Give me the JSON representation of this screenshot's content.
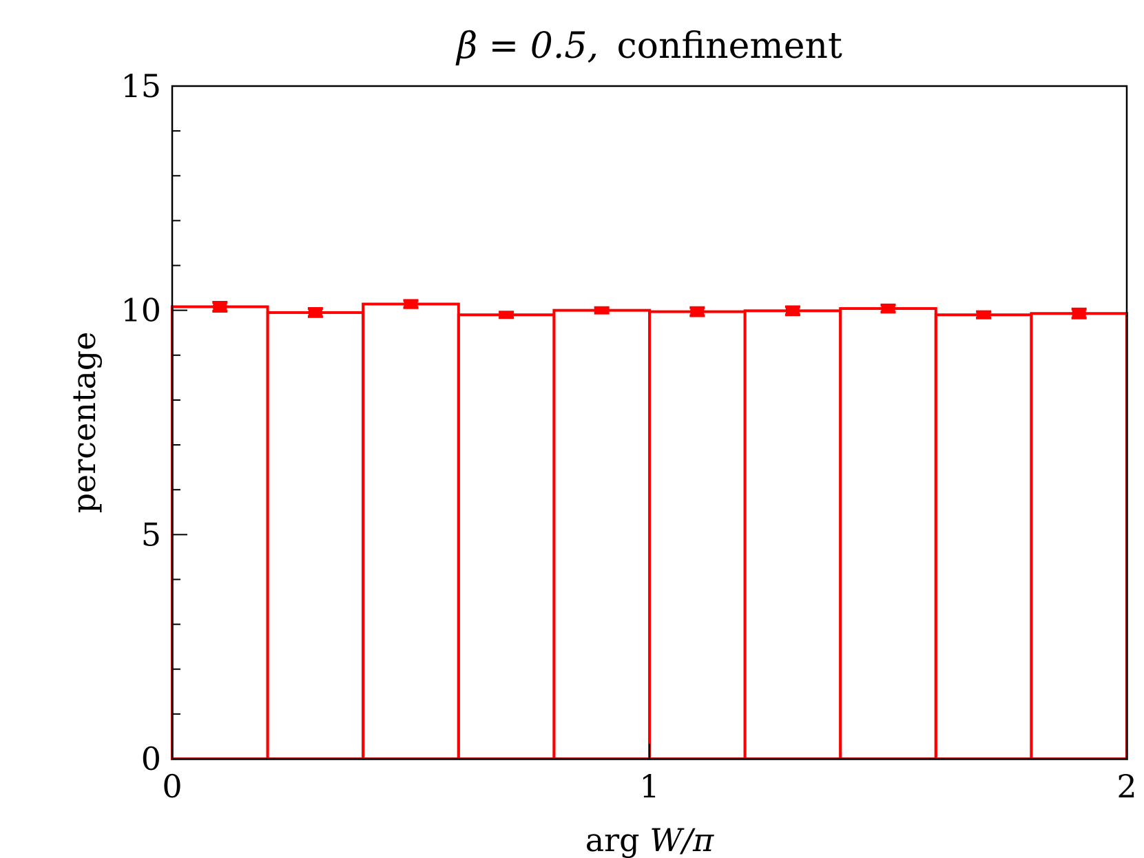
{
  "chart_data": {
    "type": "bar",
    "title_math": "β = 0.5,",
    "title_text": "confinement",
    "xlabel_prefix": "arg",
    "xlabel_math": "W/π",
    "ylabel": "percentage",
    "xlim": [
      0,
      2
    ],
    "ylim": [
      0,
      15
    ],
    "x_ticks": [
      0,
      1,
      2
    ],
    "x_tick_labels": [
      "0",
      "1",
      "2"
    ],
    "y_ticks": [
      0,
      5,
      10,
      15
    ],
    "y_tick_labels": [
      "0",
      "5",
      "10",
      "15"
    ],
    "y_minor_step": 1,
    "grid": false,
    "color": "#ff0000",
    "bin_edges": [
      0,
      0.2,
      0.4,
      0.6,
      0.8,
      1.0,
      1.2,
      1.4,
      1.6,
      1.8,
      2.0
    ],
    "values": [
      10.08,
      9.95,
      10.14,
      9.9,
      10.0,
      9.97,
      9.99,
      10.04,
      9.9,
      9.93
    ],
    "errors": [
      0.1,
      0.09,
      0.08,
      0.06,
      0.06,
      0.09,
      0.09,
      0.08,
      0.07,
      0.1
    ]
  }
}
